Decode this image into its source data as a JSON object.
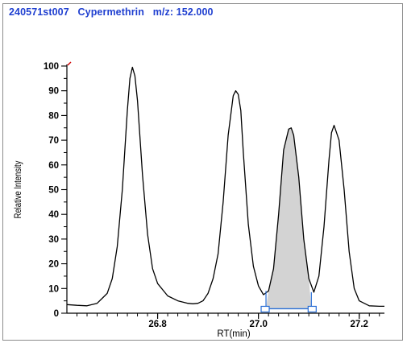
{
  "window": {
    "title_sample": "240571st007",
    "title_compound": "Cypermethrin",
    "title_mz": "m/z: 152.000"
  },
  "colors": {
    "title": "#1f3fd0",
    "trace": "#000000",
    "integrated_fill": "#d3d3d3",
    "integration_marker": "#2a6fd6",
    "marker_red": "#d00000"
  },
  "chart_data": {
    "type": "line",
    "title": "",
    "xlabel": "RT(min)",
    "ylabel": "Relative Intensity",
    "xlim": [
      26.62,
      27.25
    ],
    "ylim": [
      0,
      100
    ],
    "x_ticks": [
      26.8,
      27.0,
      27.2
    ],
    "x_tick_labels": [
      "26.8",
      "27.0",
      "27.2"
    ],
    "y_ticks": [
      0,
      10,
      20,
      30,
      40,
      50,
      60,
      70,
      80,
      90,
      100
    ],
    "y_tick_labels": [
      "0",
      "10",
      "20",
      "30",
      "40",
      "50",
      "60",
      "70",
      "80",
      "90",
      "100"
    ],
    "grid": false,
    "series": [
      {
        "x": [
          26.62,
          26.64,
          26.66,
          26.68,
          26.7,
          26.71,
          26.72,
          26.73,
          26.74,
          26.745,
          26.75,
          26.755,
          26.76,
          26.77,
          26.78,
          26.79,
          26.8,
          26.82,
          26.84,
          26.86,
          26.87,
          26.88,
          26.89,
          26.9,
          26.91,
          26.92,
          26.93,
          26.94,
          26.95,
          26.955,
          26.96,
          26.965,
          26.97,
          26.98,
          26.99,
          27.0,
          27.01,
          27.02,
          27.03,
          27.04,
          27.05,
          27.06,
          27.065,
          27.07,
          27.08,
          27.09,
          27.1,
          27.11,
          27.12,
          27.13,
          27.14,
          27.145,
          27.15,
          27.16,
          27.17,
          27.18,
          27.19,
          27.2,
          27.22,
          27.24,
          27.25
        ],
        "y": [
          3.5,
          3.2,
          3.0,
          4.0,
          8.0,
          14.0,
          27.0,
          50.0,
          82.0,
          95.0,
          99.5,
          96.0,
          86.0,
          56.0,
          32.0,
          18.0,
          12.0,
          7.0,
          5.0,
          4.0,
          3.8,
          4.0,
          5.0,
          8.0,
          14.0,
          24.0,
          45.0,
          72.0,
          88.0,
          90.0,
          88.5,
          82.0,
          65.0,
          36.0,
          19.0,
          11.0,
          7.5,
          9.0,
          18.0,
          40.0,
          66.0,
          74.5,
          75.0,
          72.0,
          55.0,
          30.0,
          14.0,
          8.5,
          15.0,
          35.0,
          62.0,
          73.0,
          76.0,
          70.0,
          50.0,
          25.0,
          10.0,
          5.0,
          3.0,
          2.8,
          2.8
        ]
      }
    ],
    "integrated_peak": {
      "x_start": 27.015,
      "x_end": 27.105,
      "baseline_start": 1.8,
      "baseline_end": 1.8
    }
  }
}
